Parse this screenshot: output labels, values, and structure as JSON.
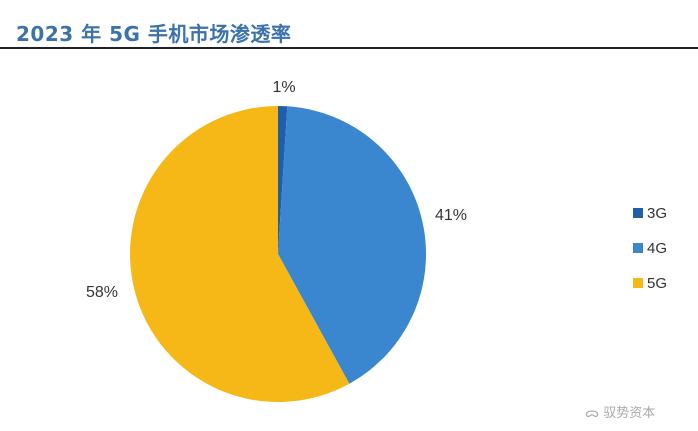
{
  "title": "2023 年 5G 手机市场渗透率",
  "watermark": "驭势资本",
  "chart_data": {
    "type": "pie",
    "title": "2023 年 5G 手机市场渗透率",
    "categories": [
      "3G",
      "4G",
      "5G"
    ],
    "values": [
      1,
      41,
      58
    ],
    "labels": [
      "1%",
      "41%",
      "58%"
    ],
    "colors": [
      "#1f5ea8",
      "#3a87d0",
      "#f5b816"
    ],
    "legend": "right",
    "start": "top, clockwise"
  }
}
